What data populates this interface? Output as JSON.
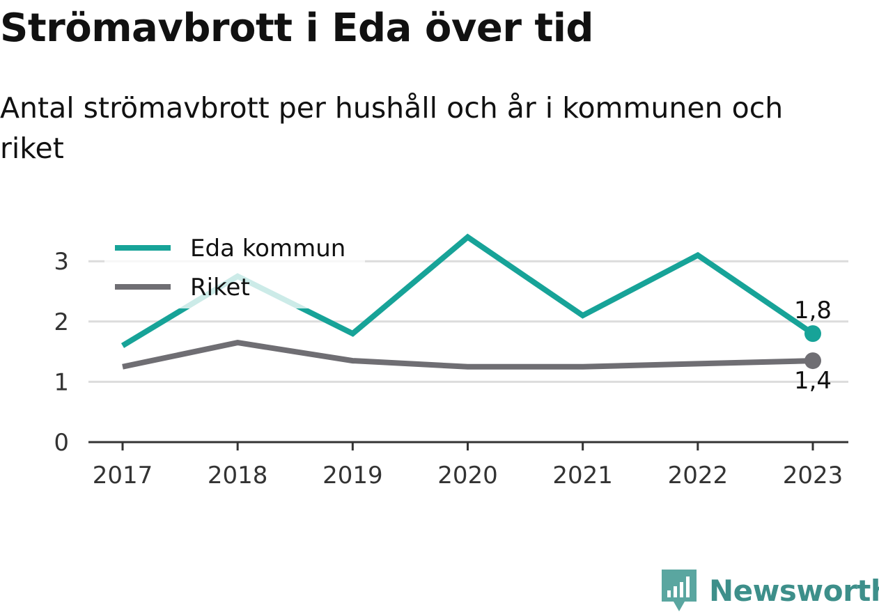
{
  "header": {
    "title": "Strömavbrott i Eda över tid",
    "subtitle": "Antal strömavbrott per hushåll och år i kommunen och riket"
  },
  "brand": {
    "name": "Newsworthy",
    "icon": "newsworthy-logo-icon",
    "color": "#3d8f8a"
  },
  "chart_data": {
    "type": "line",
    "x": [
      "2017",
      "2018",
      "2019",
      "2020",
      "2021",
      "2022",
      "2023"
    ],
    "series": [
      {
        "name": "Eda kommun",
        "color": "#17a398",
        "values": [
          1.6,
          2.75,
          1.8,
          3.4,
          2.1,
          3.1,
          1.8
        ]
      },
      {
        "name": "Riket",
        "color": "#6f6e73",
        "values": [
          1.25,
          1.65,
          1.35,
          1.25,
          1.25,
          1.3,
          1.35
        ]
      }
    ],
    "end_labels": [
      "1,8",
      "1,4"
    ],
    "yticks": [
      "0",
      "1",
      "2",
      "3"
    ],
    "ylim": [
      0,
      3.5
    ],
    "xlabel": "",
    "ylabel": "",
    "grid": true,
    "legend": "top-left"
  }
}
